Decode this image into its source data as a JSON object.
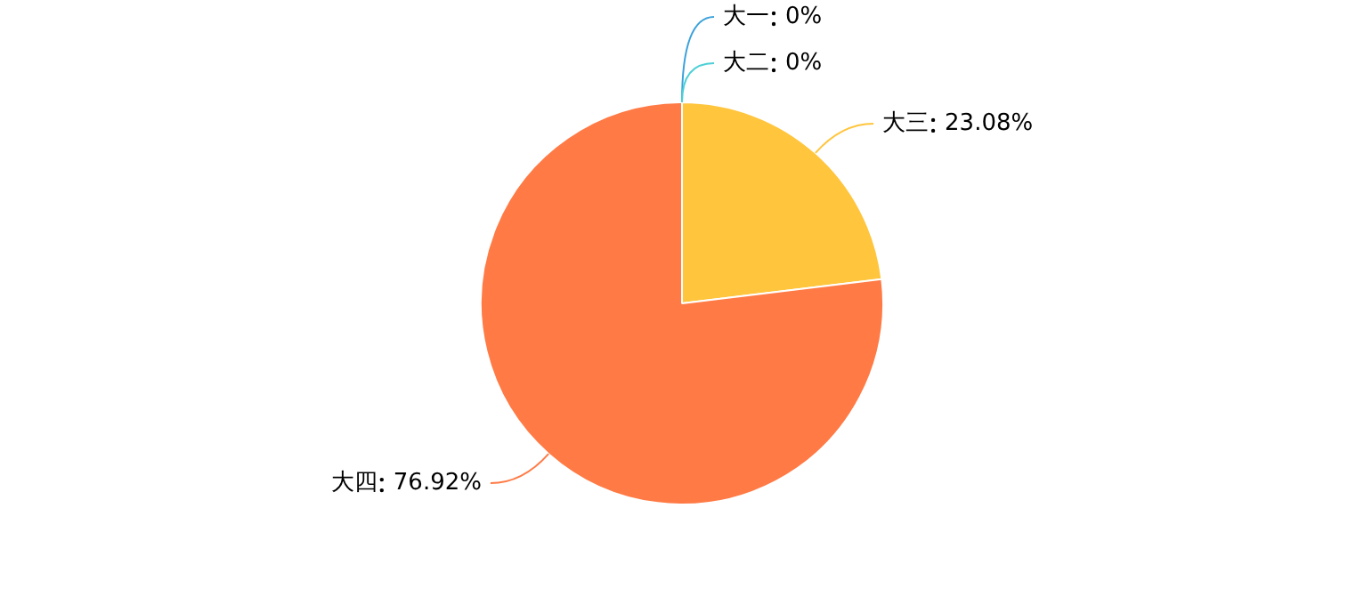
{
  "chart_data": {
    "type": "pie",
    "categories": [
      "大一",
      "大二",
      "大三",
      "大四"
    ],
    "values": [
      0,
      0,
      23.08,
      76.92
    ],
    "colors": [
      "#3ba1db",
      "#4dd0d6",
      "#ffc53d",
      "#ff7a45"
    ],
    "value_labels": [
      "0%",
      "0%",
      "23.08%",
      "76.92%"
    ],
    "legend": false
  }
}
